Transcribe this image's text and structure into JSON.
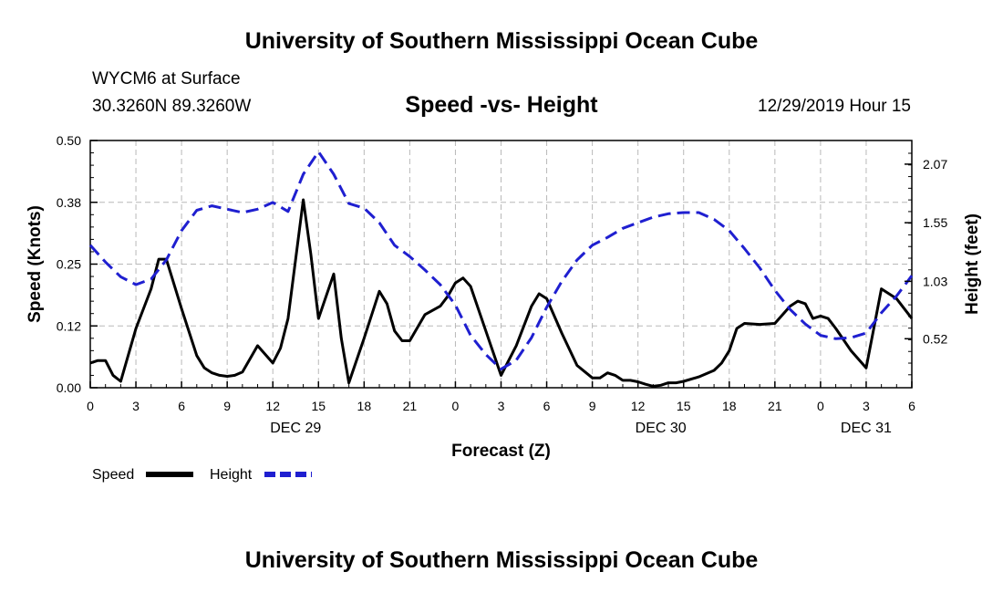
{
  "page": {
    "top_title": "University of Southern Mississippi Ocean Cube",
    "bottom_title": "University of Southern Mississippi Ocean Cube",
    "station": "WYCM6 at Surface",
    "coords": "30.3260N 89.3260W",
    "chart_title": "Speed -vs- Height",
    "datetime": "12/29/2019 Hour 15"
  },
  "colors": {
    "speed": "#000000",
    "height": "#1f1fd0",
    "grid": "#b8b8b8"
  },
  "chart_data": {
    "type": "line",
    "title": "Speed -vs- Height",
    "xlabel": "Forecast (Z)",
    "ylabel_left": "Speed (Knots)",
    "ylabel_right": "Height (feet)",
    "xlim": [
      0,
      54
    ],
    "ylim_left": [
      0,
      0.5
    ],
    "ylim_right": [
      0.085,
      2.28
    ],
    "x_ticks": [
      {
        "x": 0,
        "label": "0"
      },
      {
        "x": 3,
        "label": "3"
      },
      {
        "x": 6,
        "label": "6"
      },
      {
        "x": 9,
        "label": "9"
      },
      {
        "x": 12,
        "label": "12"
      },
      {
        "x": 15,
        "label": "15"
      },
      {
        "x": 18,
        "label": "18"
      },
      {
        "x": 21,
        "label": "21"
      },
      {
        "x": 24,
        "label": "0"
      },
      {
        "x": 27,
        "label": "3"
      },
      {
        "x": 30,
        "label": "6"
      },
      {
        "x": 33,
        "label": "9"
      },
      {
        "x": 36,
        "label": "12"
      },
      {
        "x": 39,
        "label": "15"
      },
      {
        "x": 42,
        "label": "18"
      },
      {
        "x": 45,
        "label": "21"
      },
      {
        "x": 48,
        "label": "0"
      },
      {
        "x": 51,
        "label": "3"
      },
      {
        "x": 54,
        "label": "6"
      }
    ],
    "day_labels": [
      {
        "x": 13.5,
        "label": "DEC 29"
      },
      {
        "x": 37.5,
        "label": "DEC 30"
      },
      {
        "x": 51,
        "label": "DEC 31"
      }
    ],
    "y_left_ticks": [
      {
        "value": 0.0,
        "label": "0.00"
      },
      {
        "value": 0.125,
        "label": "0.12"
      },
      {
        "value": 0.25,
        "label": "0.25"
      },
      {
        "value": 0.375,
        "label": "0.38"
      },
      {
        "value": 0.5,
        "label": "0.50"
      }
    ],
    "y_right_ticks": [
      {
        "value": 0.52,
        "label": "0.52"
      },
      {
        "value": 1.03,
        "label": "1.03"
      },
      {
        "value": 1.55,
        "label": "1.55"
      },
      {
        "value": 2.07,
        "label": "2.07"
      }
    ],
    "legend": [
      {
        "name": "Speed",
        "style": "solid"
      },
      {
        "name": "Height",
        "style": "dashed"
      }
    ],
    "series": [
      {
        "name": "Speed",
        "axis": "left",
        "style": "solid",
        "x": [
          0,
          0.5,
          1,
          1.5,
          2,
          3,
          4,
          4.5,
          5,
          6,
          7,
          7.5,
          8,
          8.5,
          9,
          9.5,
          10,
          11,
          12,
          12.5,
          13,
          14,
          14.5,
          15,
          16,
          16.5,
          17,
          18,
          19,
          19.5,
          20,
          20.5,
          21,
          22,
          23,
          23.5,
          24,
          24.5,
          25,
          26,
          27,
          28,
          29,
          29.5,
          30,
          31,
          32,
          33,
          33.5,
          34,
          34.5,
          35,
          35.5,
          36,
          36.5,
          37,
          37.5,
          38,
          38.5,
          39,
          40,
          41,
          41.5,
          42,
          42.5,
          43,
          44,
          45,
          46,
          46.5,
          47,
          47.5,
          48,
          48.5,
          49,
          50,
          51,
          51.5,
          52,
          53,
          54
        ],
        "values": [
          0.05,
          0.055,
          0.055,
          0.025,
          0.013,
          0.12,
          0.2,
          0.26,
          0.26,
          0.16,
          0.065,
          0.04,
          0.03,
          0.025,
          0.023,
          0.025,
          0.032,
          0.085,
          0.05,
          0.08,
          0.14,
          0.38,
          0.27,
          0.14,
          0.23,
          0.1,
          0.01,
          0.1,
          0.195,
          0.17,
          0.115,
          0.095,
          0.095,
          0.148,
          0.165,
          0.185,
          0.212,
          0.222,
          0.205,
          0.115,
          0.025,
          0.085,
          0.165,
          0.19,
          0.18,
          0.11,
          0.045,
          0.02,
          0.02,
          0.03,
          0.025,
          0.015,
          0.015,
          0.012,
          0.007,
          0.003,
          0.005,
          0.01,
          0.01,
          0.013,
          0.022,
          0.035,
          0.05,
          0.075,
          0.12,
          0.13,
          0.128,
          0.13,
          0.165,
          0.175,
          0.17,
          0.14,
          0.145,
          0.14,
          0.12,
          0.075,
          0.04,
          0.12,
          0.2,
          0.18,
          0.14
        ]
      },
      {
        "name": "Height",
        "axis": "right",
        "style": "dashed",
        "x": [
          0,
          1,
          2,
          3,
          4,
          5,
          6,
          7,
          8,
          9,
          10,
          11,
          12,
          13,
          14,
          15,
          16,
          17,
          18,
          19,
          20,
          21,
          22,
          23,
          24,
          25,
          26,
          27,
          28,
          29,
          30,
          31,
          32,
          33,
          34,
          35,
          36,
          37,
          38,
          39,
          40,
          41,
          42,
          43,
          44,
          45,
          46,
          47,
          48,
          49,
          50,
          51,
          52,
          53,
          54
        ],
        "values": [
          1.35,
          1.2,
          1.07,
          1.0,
          1.05,
          1.22,
          1.48,
          1.66,
          1.7,
          1.67,
          1.64,
          1.67,
          1.73,
          1.65,
          1.98,
          2.18,
          1.98,
          1.72,
          1.68,
          1.55,
          1.35,
          1.25,
          1.13,
          1.0,
          0.82,
          0.55,
          0.38,
          0.25,
          0.33,
          0.53,
          0.8,
          1.03,
          1.22,
          1.35,
          1.42,
          1.5,
          1.55,
          1.6,
          1.63,
          1.64,
          1.64,
          1.58,
          1.48,
          1.32,
          1.15,
          0.95,
          0.78,
          0.65,
          0.55,
          0.52,
          0.53,
          0.57,
          0.75,
          0.9,
          1.08
        ]
      }
    ]
  }
}
